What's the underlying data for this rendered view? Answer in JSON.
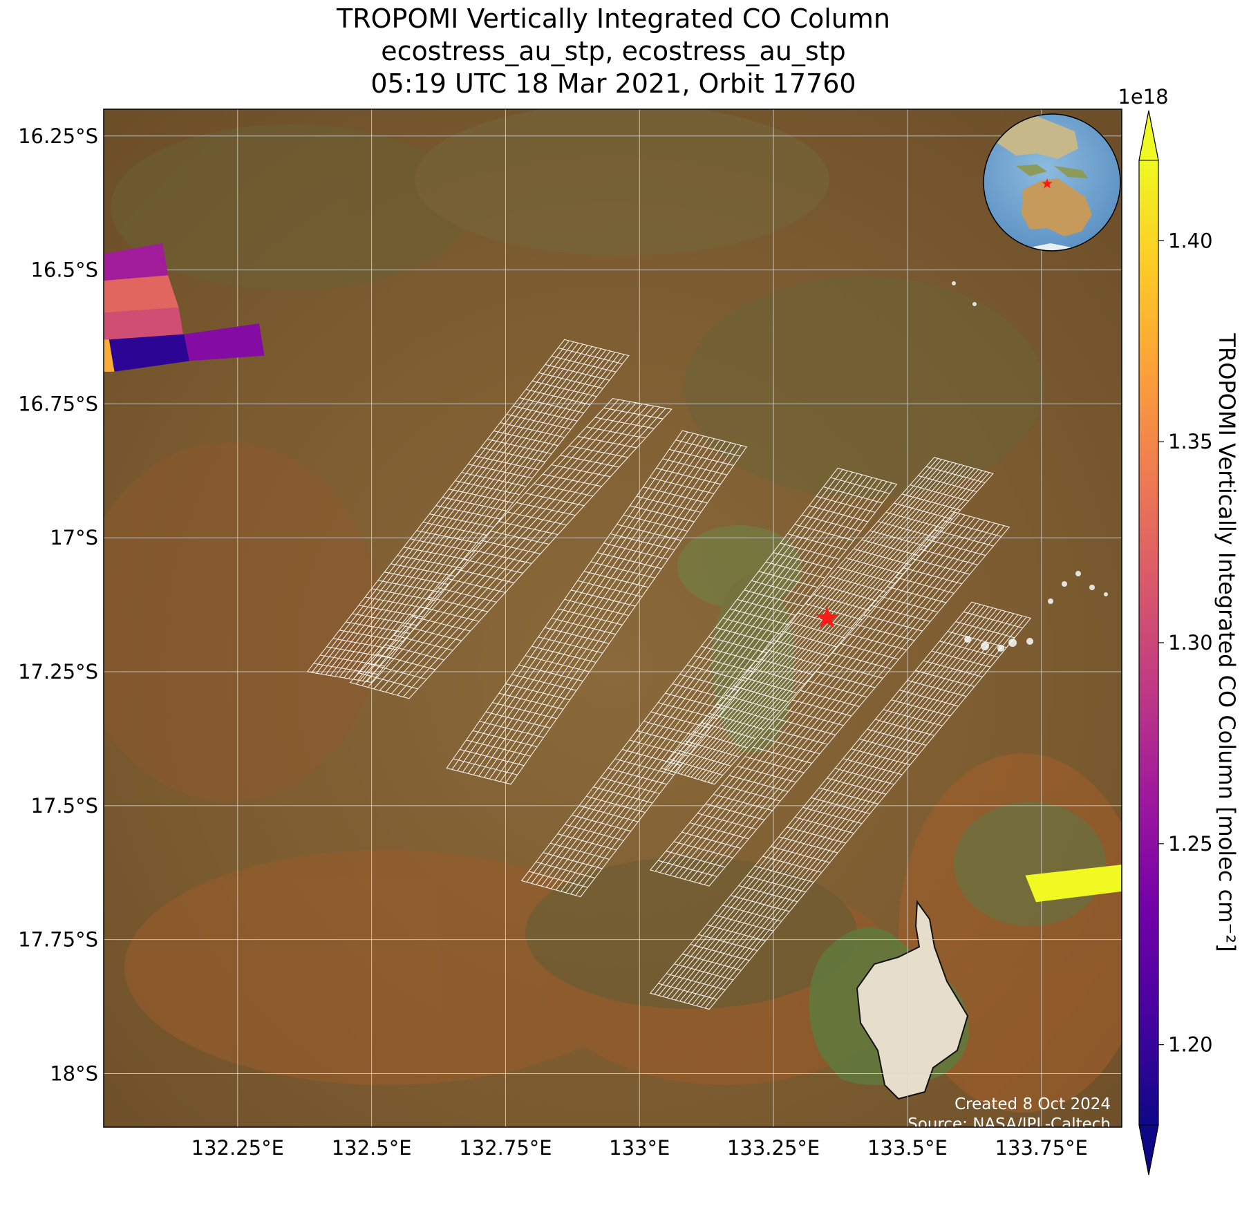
{
  "title": {
    "line1": "TROPOMI Vertically Integrated CO Column",
    "line2": "ecostress_au_stp, ecostress_au_stp",
    "line3": "05:19 UTC 18 Mar 2021, Orbit 17760"
  },
  "map": {
    "extent": {
      "lon": [
        132.0,
        133.9
      ],
      "lat": [
        -16.2,
        -18.1
      ]
    },
    "lon_ticks": [
      {
        "value": 132.25,
        "label": "132.25°E"
      },
      {
        "value": 132.5,
        "label": "132.5°E"
      },
      {
        "value": 132.75,
        "label": "132.75°E"
      },
      {
        "value": 133.0,
        "label": "133°E"
      },
      {
        "value": 133.25,
        "label": "133.25°E"
      },
      {
        "value": 133.5,
        "label": "133.5°E"
      },
      {
        "value": 133.75,
        "label": "133.75°E"
      }
    ],
    "lat_ticks": [
      {
        "value": -16.25,
        "label": "16.25°S"
      },
      {
        "value": -16.5,
        "label": "16.5°S"
      },
      {
        "value": -16.75,
        "label": "16.75°S"
      },
      {
        "value": -17.0,
        "label": "17°S"
      },
      {
        "value": -17.25,
        "label": "17.25°S"
      },
      {
        "value": -17.5,
        "label": "17.5°S"
      },
      {
        "value": -17.75,
        "label": "17.75°S"
      },
      {
        "value": -18.0,
        "label": "18°S"
      }
    ],
    "site_marker": {
      "lon": 133.35,
      "lat": -17.15,
      "color": "#ff1a1a"
    },
    "tropomi_pixels": [
      {
        "lon": [
          132.0,
          132.11,
          132.12,
          132.0
        ],
        "lat": [
          -16.47,
          -16.45,
          -16.51,
          -16.52
        ],
        "value": 1.265e+18
      },
      {
        "lon": [
          132.0,
          132.12,
          132.14,
          132.0
        ],
        "lat": [
          -16.52,
          -16.51,
          -16.57,
          -16.58
        ],
        "value": 1.325e+18
      },
      {
        "lon": [
          132.0,
          132.14,
          132.15,
          132.0
        ],
        "lat": [
          -16.58,
          -16.57,
          -16.63,
          -16.63
        ],
        "value": 1.305e+18
      },
      {
        "lon": [
          132.01,
          132.15,
          132.16,
          132.02
        ],
        "lat": [
          -16.63,
          -16.62,
          -16.67,
          -16.69
        ],
        "value": 1.195e+18
      },
      {
        "lon": [
          132.15,
          132.29,
          132.3,
          132.16
        ],
        "lat": [
          -16.62,
          -16.6,
          -16.66,
          -16.67
        ],
        "value": 1.245e+18
      },
      {
        "lon": [
          132.0,
          132.01,
          132.02,
          132.0
        ],
        "lat": [
          -16.63,
          -16.63,
          -16.69,
          -16.69
        ],
        "value": 1.375e+18
      },
      {
        "lon": [
          133.72,
          133.9,
          133.9,
          133.74
        ],
        "lat": [
          -17.63,
          -17.61,
          -17.66,
          -17.68
        ],
        "value": 1.42e+18
      }
    ],
    "ecostress_swaths": [
      {
        "corners": [
          [
            132.38,
            -17.25
          ],
          [
            132.86,
            -16.63
          ],
          [
            132.98,
            -16.66
          ],
          [
            132.5,
            -17.27
          ]
        ],
        "cols": 14,
        "rows": 40
      },
      {
        "corners": [
          [
            132.46,
            -17.27
          ],
          [
            132.95,
            -16.74
          ],
          [
            133.06,
            -16.76
          ],
          [
            132.57,
            -17.3
          ]
        ],
        "cols": 10,
        "rows": 30
      },
      {
        "corners": [
          [
            132.64,
            -17.43
          ],
          [
            133.08,
            -16.8
          ],
          [
            133.2,
            -16.83
          ],
          [
            132.76,
            -17.46
          ]
        ],
        "cols": 12,
        "rows": 36
      },
      {
        "corners": [
          [
            133.04,
            -17.43
          ],
          [
            133.55,
            -16.85
          ],
          [
            133.66,
            -16.88
          ],
          [
            133.14,
            -17.46
          ]
        ],
        "cols": 16,
        "rows": 34
      },
      {
        "corners": [
          [
            132.78,
            -17.64
          ],
          [
            133.37,
            -16.87
          ],
          [
            133.48,
            -16.9
          ],
          [
            132.89,
            -17.67
          ]
        ],
        "cols": 12,
        "rows": 44
      },
      {
        "corners": [
          [
            133.02,
            -17.62
          ],
          [
            133.58,
            -16.95
          ],
          [
            133.69,
            -16.98
          ],
          [
            133.13,
            -17.65
          ]
        ],
        "cols": 12,
        "rows": 38
      },
      {
        "corners": [
          [
            133.02,
            -17.85
          ],
          [
            133.62,
            -17.12
          ],
          [
            133.73,
            -17.15
          ],
          [
            133.13,
            -17.88
          ]
        ],
        "cols": 14,
        "rows": 40
      }
    ]
  },
  "inset_globe": {
    "marker_color": "#ff1a1a"
  },
  "colorbar": {
    "label": "TROPOMI Vertically Integrated CO Column [molec cm⁻²]",
    "offset_text": "1e18",
    "vmin": 1.18,
    "vmax": 1.42,
    "ticks": [
      {
        "value": 1.2,
        "label": "1.20"
      },
      {
        "value": 1.25,
        "label": "1.25"
      },
      {
        "value": 1.3,
        "label": "1.30"
      },
      {
        "value": 1.35,
        "label": "1.35"
      },
      {
        "value": 1.4,
        "label": "1.40"
      }
    ],
    "colormap": [
      "#0d0887",
      "#46039f",
      "#7201a8",
      "#9c179e",
      "#bd3786",
      "#d8576b",
      "#ed7953",
      "#fb9f3a",
      "#fdca26",
      "#f0f921"
    ]
  },
  "credits": {
    "created": "Created 8 Oct 2024",
    "source": "Source: NASA/JPL-Caltech"
  }
}
